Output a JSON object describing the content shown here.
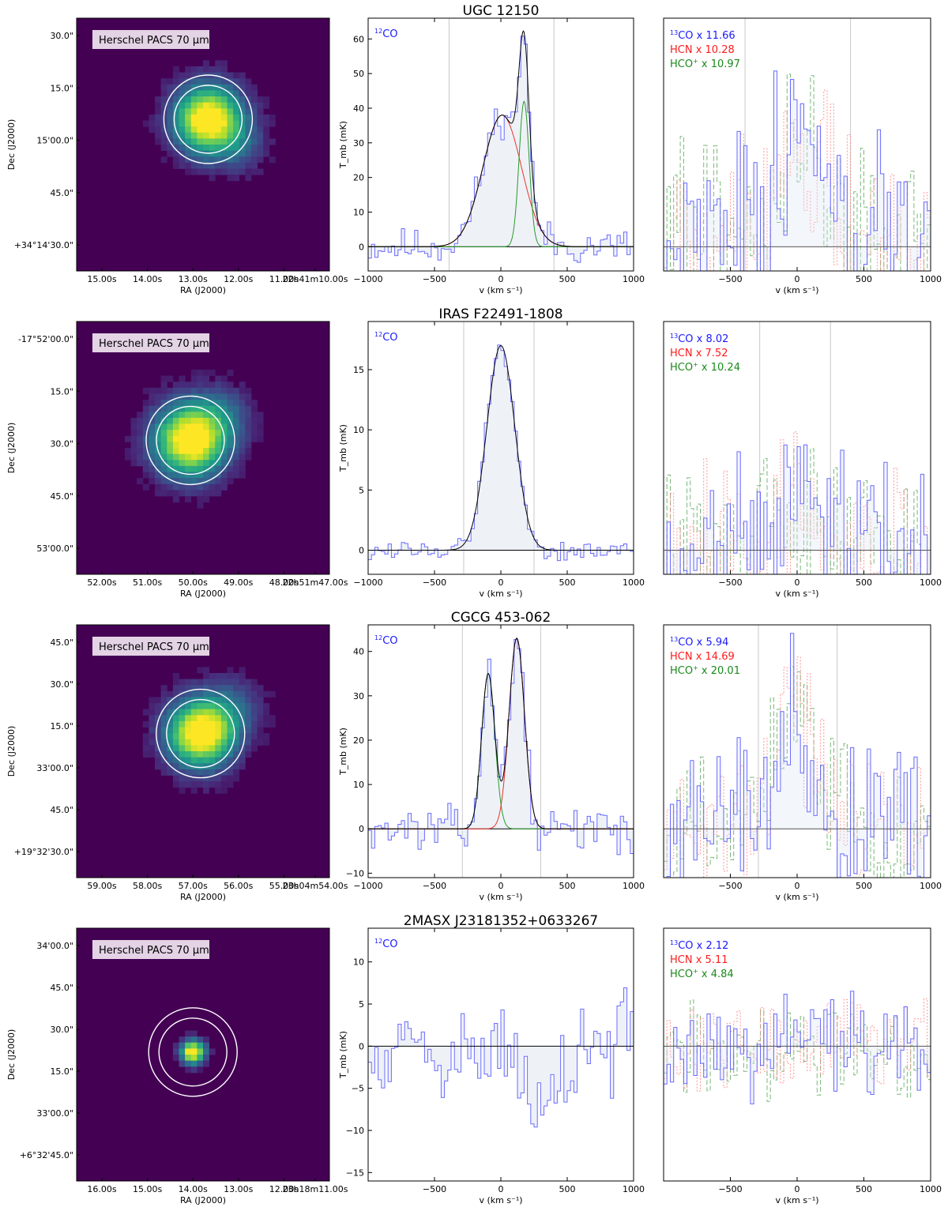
{
  "chart_data": [
    {
      "type": "line",
      "galaxy": "UGC 12150",
      "image_panel": {
        "label": "Herschel PACS 70 μm",
        "xlabel": "RA (J2000)",
        "ylabel": "Dec (J2000)",
        "ra_ticks": [
          "15.00s",
          "14.00s",
          "13.00s",
          "12.00s",
          "11.00s",
          "22h41m10.00s"
        ],
        "dec_ticks": [
          "30.0\"",
          "15.0\"",
          "15'00.0\"",
          "45.0\"",
          "+34°14'30.0\""
        ],
        "source": {
          "x": 0.52,
          "y": 0.4,
          "spread": 0.13,
          "ext": "se"
        }
      },
      "co12_panel": {
        "label": "12CO",
        "xlabel": "v (km s⁻¹)",
        "ylabel": "T_mb (mK)",
        "xlim": [
          -1000,
          1000
        ],
        "ylim": [
          -7,
          66
        ],
        "xticks": [
          -1000,
          -500,
          0,
          500,
          1000
        ],
        "yticks": [
          0,
          10,
          20,
          30,
          40,
          50,
          60
        ],
        "window_lines": [
          -390,
          400
        ],
        "components": [
          {
            "color": "#e8332e",
            "amp": 38,
            "center": 10,
            "sigma": 145
          },
          {
            "color": "#2a9a2a",
            "amp": 42,
            "center": 175,
            "sigma": 38
          }
        ],
        "seed": 11,
        "noise": 4.0
      },
      "dense_panel": {
        "xlim": [
          -1000,
          1000
        ],
        "ylim": [
          -7,
          66
        ],
        "xticks": [
          -500,
          0,
          500,
          1000
        ],
        "window_lines": [
          -390,
          400
        ],
        "legend": [
          {
            "text": "13CO x 11.66",
            "color": "#1a1aff"
          },
          {
            "text": "HCN x 10.28",
            "color": "#ff1a1a"
          },
          {
            "text": "HCO+ x 10.97",
            "color": "#1a8a1a"
          }
        ],
        "profile": {
          "amp": 30,
          "center": 0,
          "sigma": 190
        },
        "noise": 22,
        "seed": 21
      }
    },
    {
      "type": "line",
      "galaxy": "IRAS F22491-1808",
      "image_panel": {
        "label": "Herschel PACS 70 μm",
        "xlabel": "RA (J2000)",
        "ylabel": "Dec (J2000)",
        "ra_ticks": [
          "52.00s",
          "51.00s",
          "50.00s",
          "49.00s",
          "48.00s",
          "22h51m47.00s"
        ],
        "dec_ticks": [
          "-17°52'00.0\"",
          "15.0\"",
          "30.0\"",
          "45.0\"",
          "53'00.0\""
        ],
        "source": {
          "x": 0.45,
          "y": 0.47,
          "spread": 0.14,
          "ext": "ne"
        }
      },
      "co12_panel": {
        "label": "12CO",
        "xlabel": "v (km s⁻¹)",
        "ylabel": "T_mb (mK)",
        "xlim": [
          -1000,
          1000
        ],
        "ylim": [
          -2,
          19
        ],
        "xticks": [
          -1000,
          -500,
          0,
          500,
          1000
        ],
        "yticks": [
          0,
          5,
          10,
          15
        ],
        "window_lines": [
          -280,
          250
        ],
        "components": [
          {
            "color": "#2b2b8f",
            "amp": 17,
            "center": 0,
            "sigma": 105
          }
        ],
        "seed": 12,
        "noise": 0.7
      },
      "dense_panel": {
        "xlim": [
          -1000,
          1000
        ],
        "ylim": [
          -2,
          19
        ],
        "xticks": [
          -500,
          0,
          500,
          1000
        ],
        "window_lines": [
          -280,
          250
        ],
        "legend": [
          {
            "text": "13CO x 8.02",
            "color": "#1a1aff"
          },
          {
            "text": "HCN x 7.52",
            "color": "#ff1a1a"
          },
          {
            "text": "HCO+ x 10.24",
            "color": "#1a8a1a"
          }
        ],
        "profile": {
          "amp": 5,
          "center": 0,
          "sigma": 160
        },
        "noise": 5.5,
        "seed": 22
      }
    },
    {
      "type": "line",
      "galaxy": "CGCG 453-062",
      "image_panel": {
        "label": "Herschel PACS 70 μm",
        "xlabel": "RA (J2000)",
        "ylabel": "Dec (J2000)",
        "ra_ticks": [
          "59.00s",
          "58.00s",
          "57.00s",
          "56.00s",
          "55.00s",
          "23h04m54.00s"
        ],
        "dec_ticks": [
          "45.0\"",
          "30.0\"",
          "15.0\"",
          "33'00.0\"",
          "45.0\"",
          "+19°32'30.0\""
        ],
        "source": {
          "x": 0.49,
          "y": 0.43,
          "spread": 0.13,
          "ext": "ne"
        }
      },
      "co12_panel": {
        "label": "12CO",
        "xlabel": "v (km s⁻¹)",
        "ylabel": "T_mb (mK)",
        "xlim": [
          -1000,
          1000
        ],
        "ylim": [
          -11,
          46
        ],
        "xticks": [
          -1000,
          -500,
          0,
          500,
          1000
        ],
        "yticks": [
          -10,
          0,
          10,
          20,
          30,
          40
        ],
        "window_lines": [
          -290,
          300
        ],
        "components": [
          {
            "color": "#2a9a2a",
            "amp": 35,
            "center": -95,
            "sigma": 50
          },
          {
            "color": "#e8332e",
            "amp": 43,
            "center": 120,
            "sigma": 58
          }
        ],
        "seed": 13,
        "noise": 3.5
      },
      "dense_panel": {
        "xlim": [
          -1000,
          1000
        ],
        "ylim": [
          -11,
          46
        ],
        "xticks": [
          -500,
          0,
          500,
          1000
        ],
        "window_lines": [
          -290,
          300
        ],
        "legend": [
          {
            "text": "13CO x 5.94",
            "color": "#1a1aff"
          },
          {
            "text": "HCN x 14.69",
            "color": "#ff1a1a"
          },
          {
            "text": "HCO+ x 20.01",
            "color": "#1a8a1a"
          }
        ],
        "profile": {
          "amp": 25,
          "center": 0,
          "sigma": 170
        },
        "noise": 13,
        "seed": 23
      }
    },
    {
      "type": "line",
      "galaxy": "2MASX J23181352+0633267",
      "image_panel": {
        "label": "Herschel PACS 70 μm",
        "xlabel": "RA (J2000)",
        "ylabel": "Dec (J2000)",
        "ra_ticks": [
          "16.00s",
          "15.00s",
          "14.00s",
          "13.00s",
          "12.00s",
          "23h18m11.00s"
        ],
        "dec_ticks": [
          "34'00.0\"",
          "45.0\"",
          "30.0\"",
          "15.0\"",
          "33'00.0\"",
          "+6°32'45.0\""
        ],
        "source": {
          "x": 0.46,
          "y": 0.49,
          "spread": 0.045,
          "ext": "none"
        }
      },
      "co12_panel": {
        "label": "12CO",
        "xlabel": "v (km s⁻¹)",
        "ylabel": "T_mb (mK)",
        "xlim": [
          -1000,
          1000
        ],
        "ylim": [
          -16,
          14
        ],
        "xticks": [
          -500,
          0,
          500,
          1000
        ],
        "yticks": [
          -15,
          -10,
          -5,
          0,
          5,
          10
        ],
        "window_lines": [],
        "components": [],
        "trough": {
          "amp": -9,
          "center": 300,
          "sigma": 120
        },
        "seed": 14,
        "noise": 4.8
      },
      "dense_panel": {
        "xlim": [
          -1000,
          1000
        ],
        "ylim": [
          -16,
          14
        ],
        "xticks": [
          -500,
          0,
          500,
          1000
        ],
        "window_lines": [],
        "legend": [
          {
            "text": "13CO x 2.12",
            "color": "#1a1aff"
          },
          {
            "text": "HCN x 5.11",
            "color": "#ff1a1a"
          },
          {
            "text": "HCO+ x 4.84",
            "color": "#1a8a1a"
          }
        ],
        "profile": {
          "amp": 0,
          "center": 0,
          "sigma": 150
        },
        "noise": 4.5,
        "seed": 24
      }
    }
  ]
}
